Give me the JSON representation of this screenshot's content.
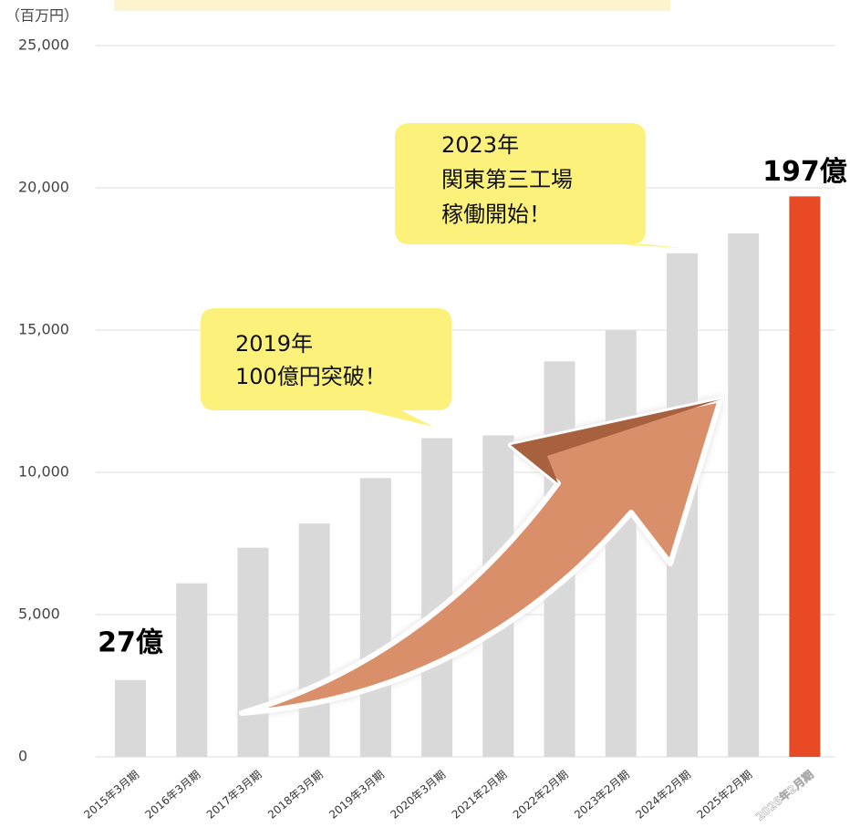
{
  "chart_data": {
    "type": "bar",
    "y_axis_label": "（百万円）",
    "categories": [
      "2015年3月期",
      "2016年3月期",
      "2017年3月期",
      "2018年3月期",
      "2019年3月期",
      "2020年3月期",
      "2021年2月期",
      "2022年2月期",
      "2023年2月期",
      "2024年2月期",
      "2025年2月期",
      "2026年2月期"
    ],
    "values": [
      2700,
      6100,
      7350,
      8200,
      9800,
      11200,
      11300,
      13900,
      15000,
      17700,
      18400,
      19700
    ],
    "value_labels": [
      "27億",
      null,
      null,
      null,
      null,
      null,
      null,
      null,
      null,
      null,
      null,
      "197億"
    ],
    "colors": [
      "#d9d9d9",
      "#d9d9d9",
      "#d9d9d9",
      "#d9d9d9",
      "#d9d9d9",
      "#d9d9d9",
      "#d9d9d9",
      "#d9d9d9",
      "#d9d9d9",
      "#d9d9d9",
      "#d9d9d9",
      "#e84a25"
    ],
    "ylim": [
      0,
      25000
    ],
    "yticks": [
      0,
      {
        "value": 5000,
        "label": "5,000"
      },
      {
        "value": 10000,
        "label": "10,000"
      },
      {
        "value": 15000,
        "label": "15,000"
      },
      {
        "value": 20000,
        "label": "20,000"
      },
      {
        "value": 25000,
        "label": "25,000"
      }
    ],
    "grid": true,
    "annotations": [
      {
        "lines": [
          "2019年",
          "100億円突破！"
        ]
      },
      {
        "lines": [
          "2023年",
          "関東第三工場",
          "稼働開始！"
        ]
      }
    ]
  }
}
